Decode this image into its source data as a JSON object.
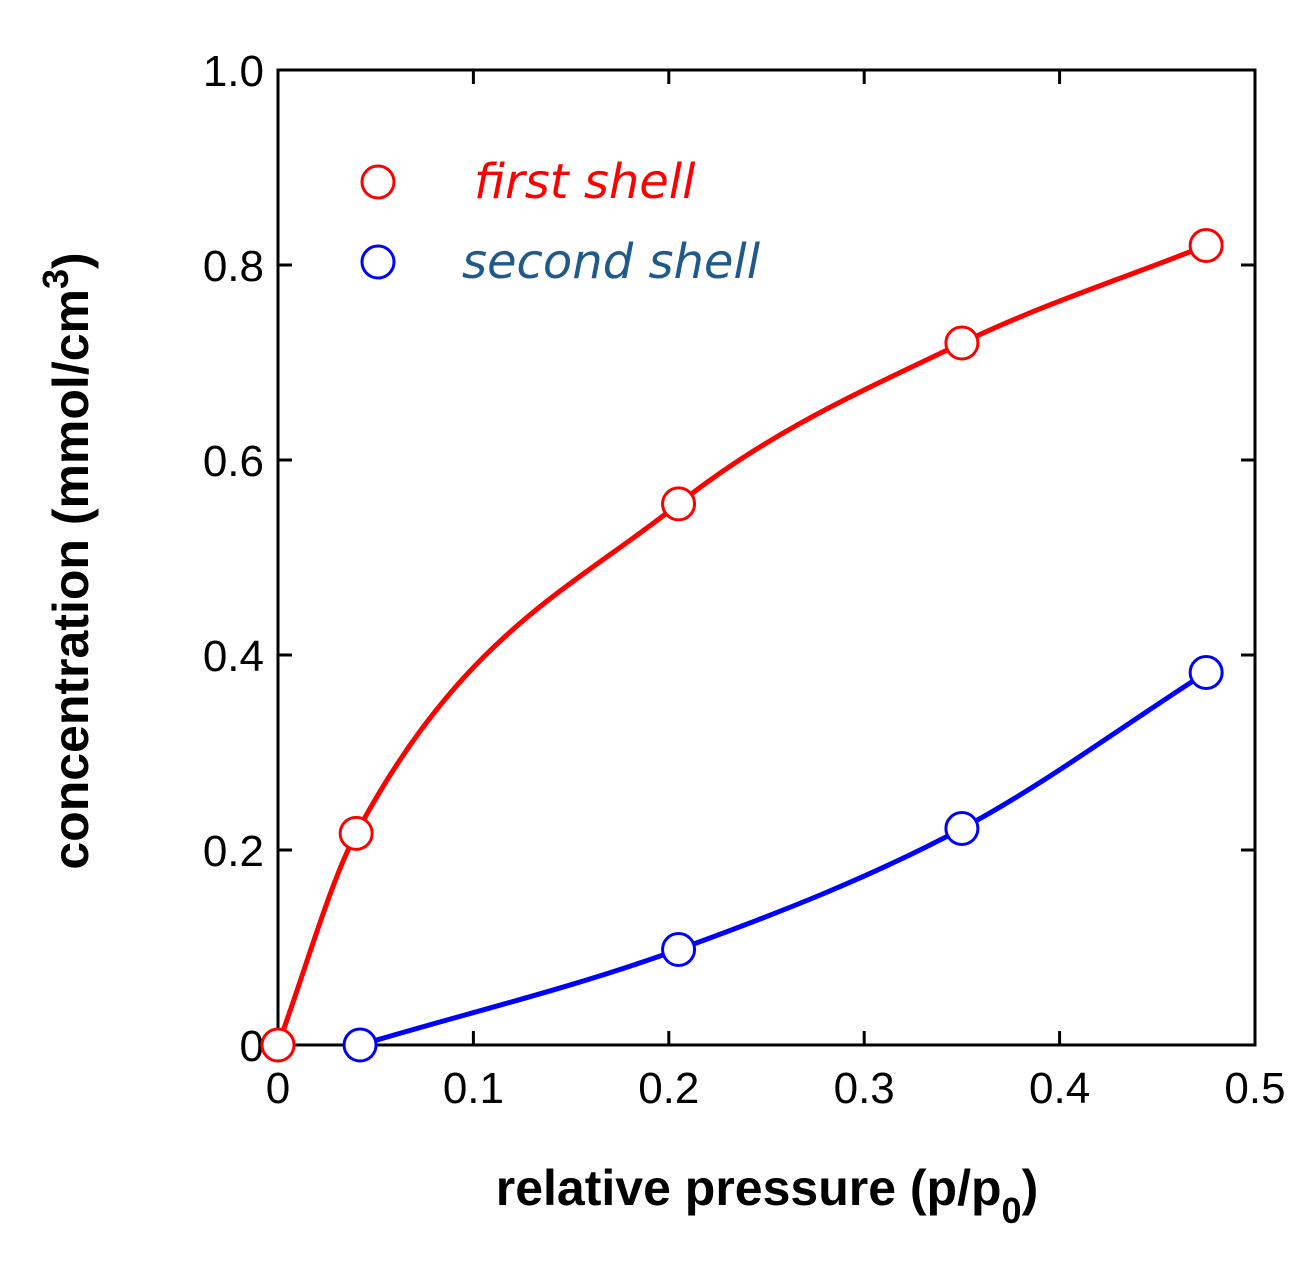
{
  "chart_data": {
    "type": "line",
    "title": "",
    "xlabel": {
      "main": "relative pressure (p/p",
      "sub": "0",
      "close": ")"
    },
    "ylabel": {
      "main": "concentration (mmol/cm",
      "sup": "3",
      "close": ")"
    },
    "xlim": [
      0,
      0.5
    ],
    "ylim": [
      0,
      1.0
    ],
    "xticks": [
      0,
      0.1,
      0.2,
      0.3,
      0.4,
      0.5
    ],
    "xtick_labels": [
      "0",
      "0.1",
      "0.2",
      "0.3",
      "0.4",
      "0.5"
    ],
    "yticks": [
      0,
      0.2,
      0.4,
      0.6,
      0.8,
      1.0
    ],
    "ytick_labels": [
      "0",
      "0.2",
      "0.4",
      "0.6",
      "0.8",
      "1.0"
    ],
    "grid": false,
    "legend_position": "top-left",
    "series": [
      {
        "name": "first shell",
        "color": "#ff0000",
        "marker": "open-circle",
        "x": [
          0,
          0.04,
          0.205,
          0.35,
          0.475
        ],
        "y": [
          0,
          0.217,
          0.555,
          0.72,
          0.82
        ]
      },
      {
        "name": "second shell",
        "color": "#0000ff",
        "legend_text_color": "#1f5a8a",
        "marker": "open-circle",
        "x": [
          0.042,
          0.205,
          0.35,
          0.475
        ],
        "y": [
          0,
          0.098,
          0.222,
          0.382
        ]
      }
    ]
  }
}
